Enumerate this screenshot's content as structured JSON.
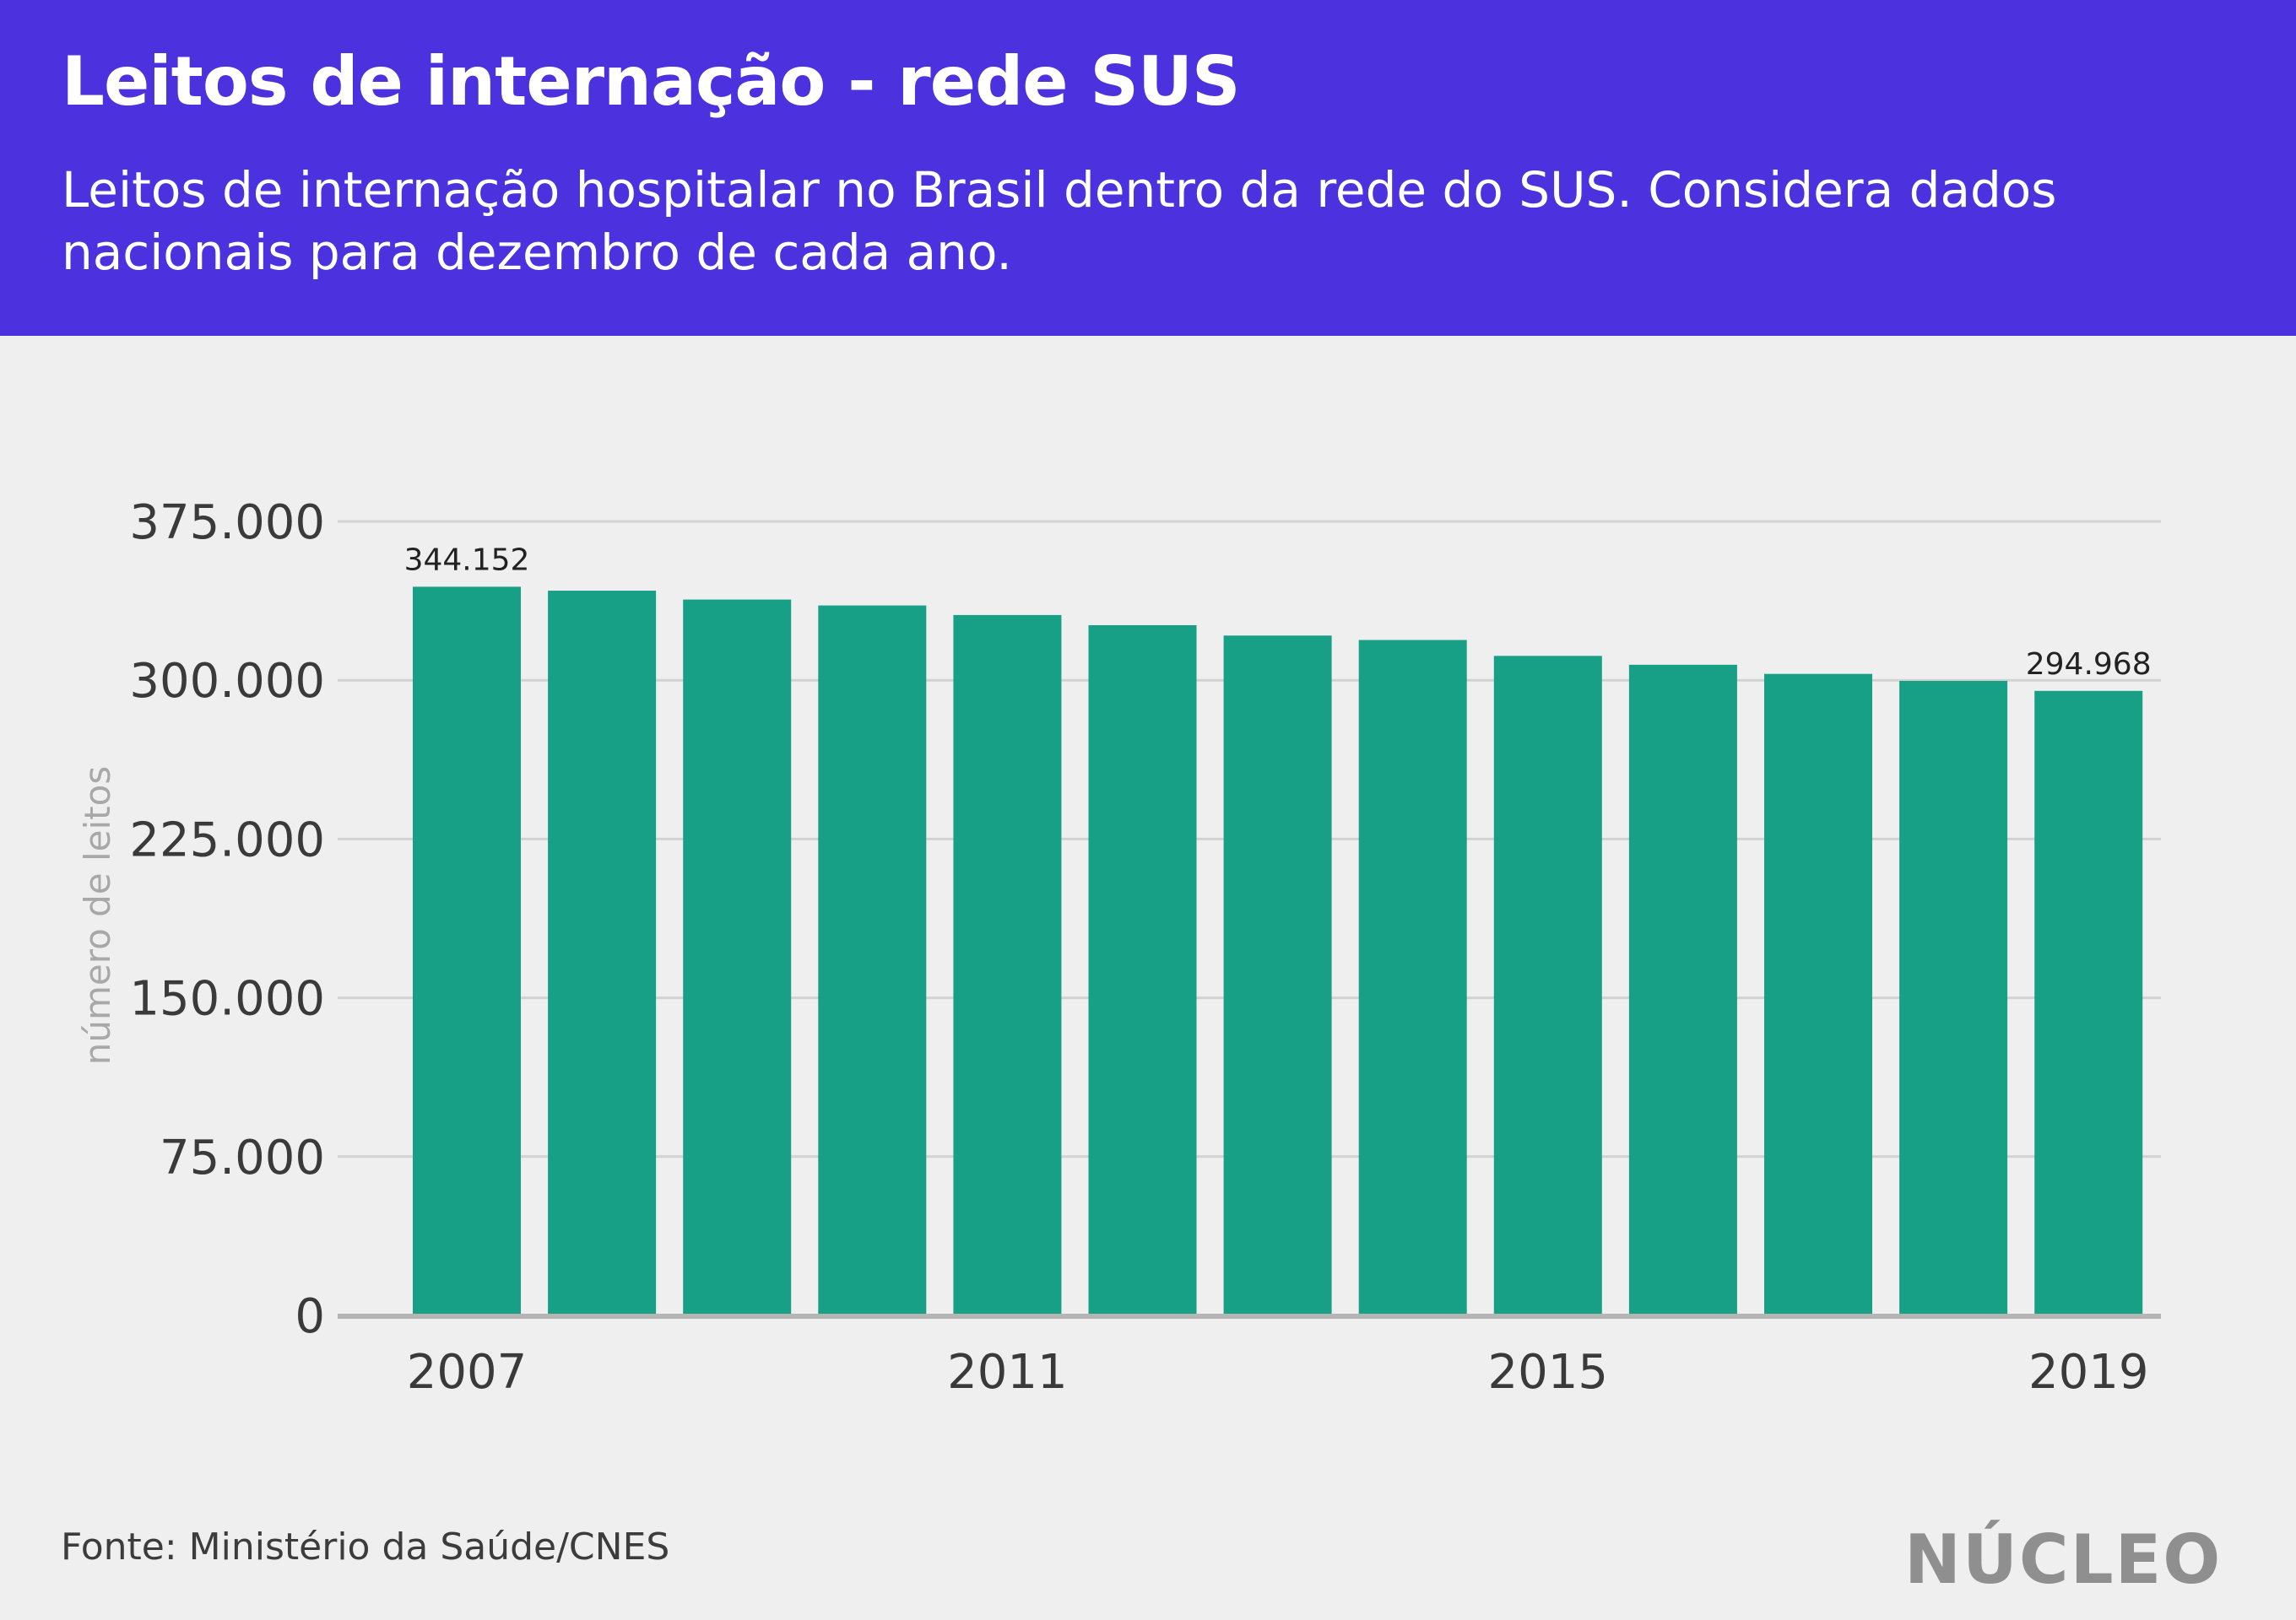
{
  "title": "Leitos de internação - rede SUS",
  "subtitle": "Leitos de internação hospitalar no Brasil dentro da rede do SUS. Considera dados nacionais para dezembro de cada ano.",
  "source": "Fonte: Ministério da Saúde/CNES",
  "logo": "NÚCLEO",
  "colors": {
    "header": "#4b32de",
    "bar": "#17a086",
    "background": "#efefef",
    "grid": "#d2d2d2",
    "axis": "#b5b5b5"
  },
  "chart_data": {
    "type": "bar",
    "categories": [
      "2007",
      "2008",
      "2009",
      "2010",
      "2011",
      "2012",
      "2013",
      "2014",
      "2015",
      "2016",
      "2017",
      "2018",
      "2019"
    ],
    "values": [
      344152,
      342300,
      338100,
      335300,
      330800,
      326000,
      321100,
      319000,
      311500,
      307300,
      303000,
      299700,
      294968
    ],
    "x_tick_labels": [
      "2007",
      "",
      "",
      "",
      "2011",
      "",
      "",
      "",
      "2015",
      "",
      "",
      "",
      "2019"
    ],
    "data_labels": [
      "344.152",
      "",
      "",
      "",
      "",
      "",
      "",
      "",
      "",
      "",
      "",
      "",
      "294.968"
    ],
    "title": "",
    "xlabel": "",
    "ylabel": "número de leitos",
    "ylim": [
      0,
      375000
    ],
    "yticks": [
      0,
      75000,
      150000,
      225000,
      300000,
      375000
    ],
    "ytick_labels": [
      "0",
      "75.000",
      "150.000",
      "225.000",
      "300.000",
      "375.000"
    ],
    "grid": true,
    "legend": "none"
  }
}
